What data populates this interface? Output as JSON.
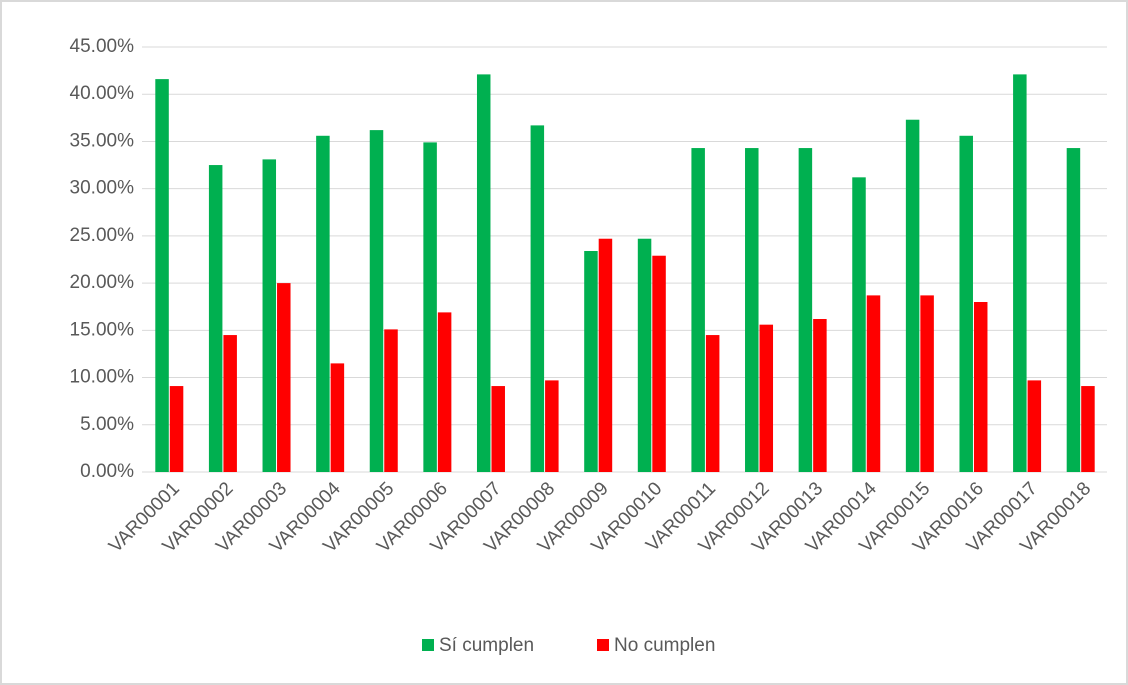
{
  "chart_data": {
    "type": "bar",
    "categories": [
      "VAR00001",
      "VAR00002",
      "VAR00003",
      "VAR00004",
      "VAR00005",
      "VAR00006",
      "VAR00007",
      "VAR00008",
      "VAR00009",
      "VAR00010",
      "VAR00011",
      "VAR00012",
      "VAR00013",
      "VAR00014",
      "VAR00015",
      "VAR00016",
      "VAR00017",
      "VAR00018"
    ],
    "series": [
      {
        "name": "Sí cumplen",
        "color": "#00b050",
        "values": [
          41.6,
          32.5,
          33.1,
          35.6,
          36.2,
          34.9,
          42.1,
          36.7,
          23.4,
          24.7,
          34.3,
          34.3,
          34.3,
          31.2,
          37.3,
          35.6,
          42.1,
          34.3
        ]
      },
      {
        "name": "No cumplen",
        "color": "#ff0000",
        "values": [
          9.1,
          14.5,
          20.0,
          11.5,
          15.1,
          16.9,
          9.1,
          9.7,
          24.7,
          22.9,
          14.5,
          15.6,
          16.2,
          18.7,
          18.7,
          18.0,
          9.7,
          9.1
        ]
      }
    ],
    "ylim": [
      0,
      45
    ],
    "yticks": [
      {
        "value": 0,
        "label": "0.00%"
      },
      {
        "value": 5,
        "label": "5.00%"
      },
      {
        "value": 10,
        "label": "10.00%"
      },
      {
        "value": 15,
        "label": "15.00%"
      },
      {
        "value": 20,
        "label": "20.00%"
      },
      {
        "value": 25,
        "label": "25.00%"
      },
      {
        "value": 30,
        "label": "30.00%"
      },
      {
        "value": 35,
        "label": "35.00%"
      },
      {
        "value": 40,
        "label": "40.00%"
      },
      {
        "value": 45,
        "label": "45.00%"
      }
    ],
    "grid": true,
    "legend": "bottom"
  }
}
